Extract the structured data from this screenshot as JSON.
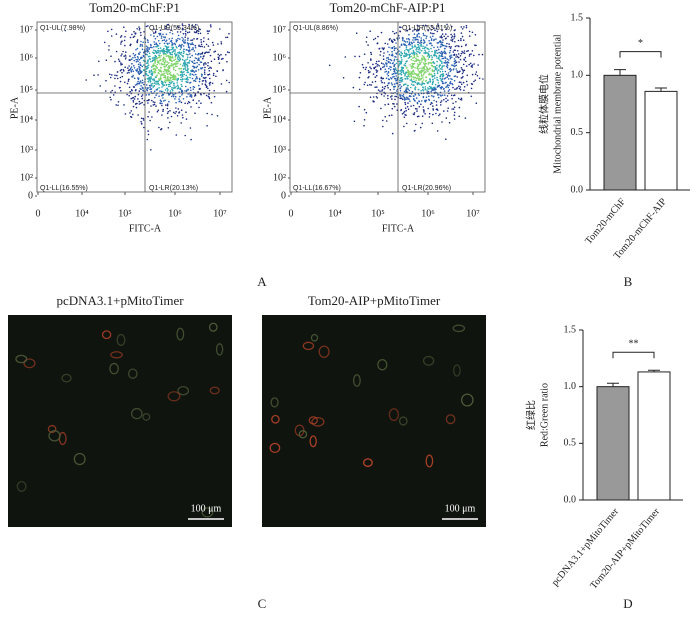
{
  "panel_labels": [
    "A",
    "B",
    "C",
    "D"
  ],
  "flow_plots": [
    {
      "title": "Tom20-mChF:P1",
      "xlabel": "FITC-A",
      "ylabel": "PE-A",
      "quadrants": [
        "Q1-UL(7.98%)",
        "Q1-UR(55.34%)",
        "Q1-LL(16.55%)",
        "Q1-LR(20.13%)"
      ],
      "xticks": [
        "0",
        "10⁴",
        "10⁵",
        "10⁶",
        "10⁷"
      ],
      "yticks": [
        "10⁷",
        "10⁶",
        "10⁵",
        "10⁴",
        "10³",
        "10²",
        "0"
      ]
    },
    {
      "title": "Tom20-mChF-AIP:P1",
      "xlabel": "FITC-A",
      "ylabel": "PE-A",
      "quadrants": [
        "Q1-UL(8.86%)",
        "Q1-UR(53.51%)",
        "Q1-LL(16.67%)",
        "Q1-LR(20.96%)"
      ],
      "xticks": [
        "0",
        "10⁴",
        "10⁵",
        "10⁶",
        "10⁷"
      ],
      "yticks": [
        "10⁷",
        "10⁶",
        "10⁵",
        "10⁴",
        "10³",
        "10²",
        "0"
      ]
    }
  ],
  "micrographs": [
    {
      "title": "pcDNA3.1+pMitoTimer",
      "scale_bar": "100 μm"
    },
    {
      "title": "Tom20-AIP+pMitoTimer",
      "scale_bar": "100 μm"
    }
  ],
  "chart_data": [
    {
      "type": "bar",
      "ylabel": [
        "线粒体膜电位",
        "Mitochondrial membrane potential"
      ],
      "categories": [
        "Tom20-mChF",
        "Tom20-mChF-AIP"
      ],
      "values": [
        1.0,
        0.86
      ],
      "errors": [
        0.05,
        0.03
      ],
      "colors": [
        "#999999",
        "#ffffff"
      ],
      "significance": "*",
      "ylim": [
        0,
        1.5
      ],
      "yticks": [
        {
          "value": 0,
          "label": "0.0"
        },
        0.5,
        {
          "value": 1,
          "label": "1.0"
        },
        1.5
      ]
    },
    {
      "type": "bar",
      "ylabel": [
        "红绿比",
        "Red:Green ratio"
      ],
      "categories": [
        "pcDNA3.1+pMitoTimer",
        "Tom20-AIP+pMitoTimer"
      ],
      "values": [
        1.0,
        1.13
      ],
      "errors": [
        0.03,
        0.015
      ],
      "colors": [
        "#999999",
        "#ffffff"
      ],
      "significance": "**",
      "ylim": [
        0,
        1.5
      ],
      "yticks": [
        {
          "value": 0,
          "label": "0.0"
        },
        0.5,
        {
          "value": 1,
          "label": "1.0"
        },
        1.5
      ]
    }
  ]
}
